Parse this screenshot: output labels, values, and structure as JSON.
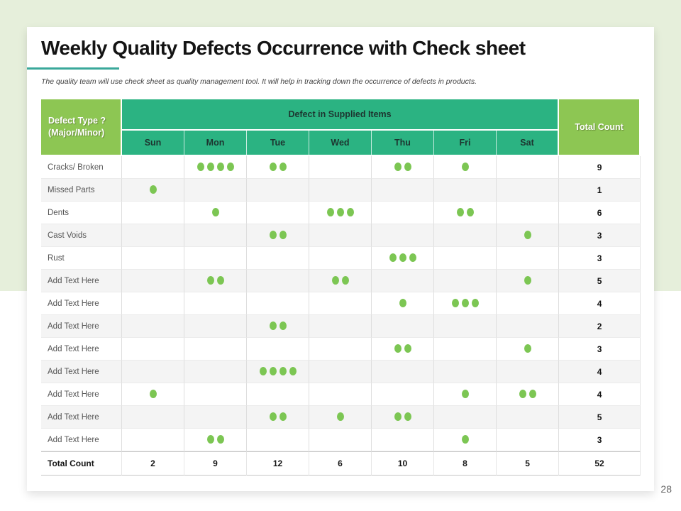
{
  "page": {
    "number": "28"
  },
  "slide": {
    "title": "Weekly Quality Defects Occurrence with Check sheet",
    "subtitle": "The quality team will use check sheet as quality management tool. It will help in tracking down the occurrence of defects in products."
  },
  "table": {
    "header": {
      "defect_type_line1": "Defect Type ?",
      "defect_type_line2": "(Major/Minor)",
      "supplied_items": "Defect in Supplied Items",
      "total_count": "Total Count",
      "days": [
        "Sun",
        "Mon",
        "Tue",
        "Wed",
        "Thu",
        "Fri",
        "Sat"
      ]
    },
    "rows": [
      {
        "label": "Cracks/ Broken",
        "counts": [
          0,
          4,
          2,
          0,
          2,
          1,
          0
        ],
        "total": 9
      },
      {
        "label": "Missed Parts",
        "counts": [
          1,
          0,
          0,
          0,
          0,
          0,
          0
        ],
        "total": 1
      },
      {
        "label": "Dents",
        "counts": [
          0,
          1,
          0,
          3,
          0,
          2,
          0
        ],
        "total": 6
      },
      {
        "label": "Cast Voids",
        "counts": [
          0,
          0,
          2,
          0,
          0,
          0,
          1
        ],
        "total": 3
      },
      {
        "label": "Rust",
        "counts": [
          0,
          0,
          0,
          0,
          3,
          0,
          0
        ],
        "total": 3
      },
      {
        "label": "Add Text Here",
        "counts": [
          0,
          2,
          0,
          2,
          0,
          0,
          1
        ],
        "total": 5
      },
      {
        "label": "Add Text Here",
        "counts": [
          0,
          0,
          0,
          0,
          1,
          3,
          0
        ],
        "total": 4
      },
      {
        "label": "Add Text Here",
        "counts": [
          0,
          0,
          2,
          0,
          0,
          0,
          0
        ],
        "total": 2
      },
      {
        "label": "Add Text Here",
        "counts": [
          0,
          0,
          0,
          0,
          2,
          0,
          1
        ],
        "total": 3
      },
      {
        "label": "Add Text Here",
        "counts": [
          0,
          0,
          4,
          0,
          0,
          0,
          0
        ],
        "total": 4
      },
      {
        "label": "Add Text Here",
        "counts": [
          1,
          0,
          0,
          0,
          0,
          1,
          2
        ],
        "total": 4
      },
      {
        "label": "Add Text Here",
        "counts": [
          0,
          0,
          2,
          1,
          2,
          0,
          0
        ],
        "total": 5
      },
      {
        "label": "Add Text Here",
        "counts": [
          0,
          2,
          0,
          0,
          0,
          1,
          0
        ],
        "total": 3
      }
    ],
    "footer": {
      "label": "Total Count",
      "counts": [
        2,
        9,
        12,
        6,
        10,
        8,
        5
      ],
      "total": 52
    }
  },
  "colors": {
    "background_band": "#e6efdb",
    "header_green": "#8dc653",
    "header_teal": "#2bb382",
    "dot_green": "#7cc653",
    "title_underline": "#3aa89a"
  }
}
